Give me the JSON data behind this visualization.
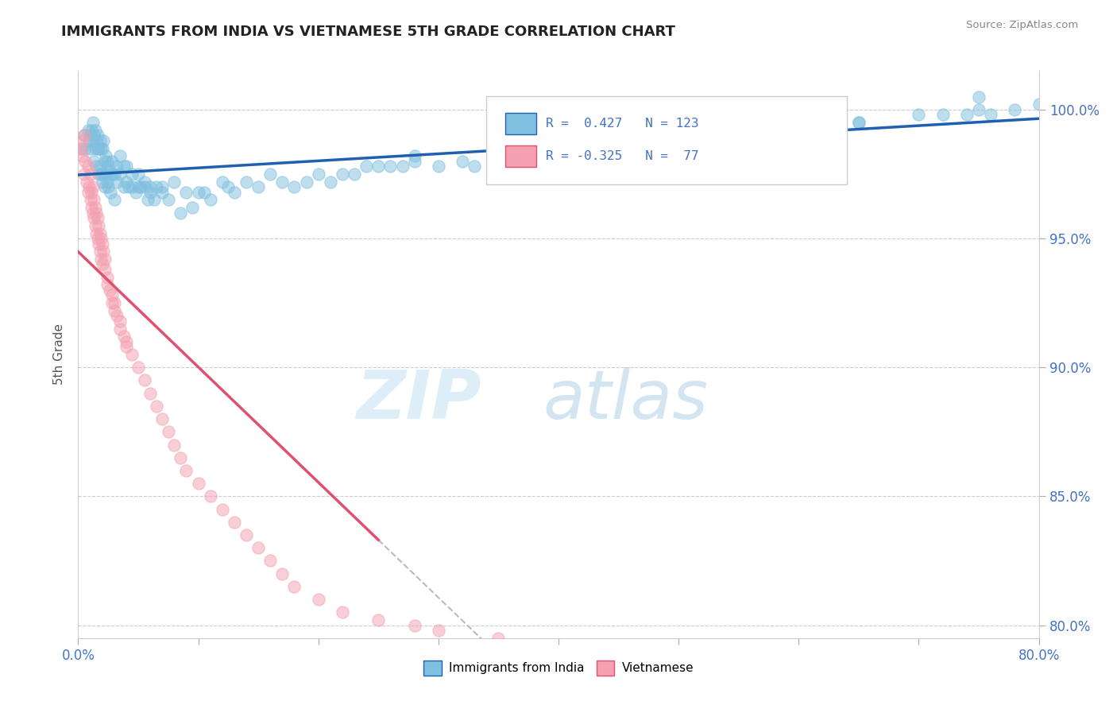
{
  "title": "IMMIGRANTS FROM INDIA VS VIETNAMESE 5TH GRADE CORRELATION CHART",
  "source_text": "Source: ZipAtlas.com",
  "ylabel": "5th Grade",
  "xlim": [
    0.0,
    80.0
  ],
  "ylim": [
    79.5,
    101.5
  ],
  "xticks": [
    0.0,
    10.0,
    20.0,
    30.0,
    40.0,
    50.0,
    60.0,
    70.0,
    80.0
  ],
  "yticks": [
    80.0,
    85.0,
    90.0,
    95.0,
    100.0
  ],
  "xtick_labels": [
    "0.0%",
    "",
    "",
    "",
    "",
    "",
    "",
    "",
    "80.0%"
  ],
  "ytick_labels": [
    "80.0%",
    "85.0%",
    "90.0%",
    "95.0%",
    "100.0%"
  ],
  "india_R": 0.427,
  "india_N": 123,
  "viet_R": -0.325,
  "viet_N": 77,
  "india_color": "#7fbfdf",
  "viet_color": "#f4a0b0",
  "india_line_color": "#2060b0",
  "viet_line_color": "#e05070",
  "legend_india_label": "Immigrants from India",
  "legend_viet_label": "Vietnamese",
  "background_color": "#ffffff",
  "india_scatter_x": [
    0.3,
    0.5,
    0.6,
    0.8,
    0.9,
    1.0,
    1.0,
    1.1,
    1.2,
    1.2,
    1.3,
    1.3,
    1.4,
    1.4,
    1.5,
    1.5,
    1.6,
    1.6,
    1.7,
    1.7,
    1.8,
    1.8,
    1.9,
    1.9,
    2.0,
    2.0,
    2.1,
    2.1,
    2.2,
    2.2,
    2.3,
    2.3,
    2.4,
    2.4,
    2.5,
    2.5,
    2.7,
    2.7,
    2.8,
    2.8,
    3.0,
    3.0,
    3.2,
    3.2,
    3.5,
    3.5,
    3.8,
    3.8,
    4.0,
    4.0,
    4.2,
    4.5,
    4.5,
    4.8,
    5.0,
    5.0,
    5.2,
    5.5,
    5.5,
    5.8,
    6.0,
    6.0,
    6.3,
    6.5,
    7.0,
    7.0,
    7.5,
    8.0,
    8.5,
    9.0,
    9.5,
    10.0,
    10.5,
    11.0,
    12.0,
    12.5,
    13.0,
    14.0,
    15.0,
    16.0,
    17.0,
    18.0,
    19.0,
    20.0,
    21.0,
    22.0,
    23.0,
    24.0,
    25.0,
    26.0,
    27.0,
    28.0,
    30.0,
    32.0,
    33.0,
    35.0,
    37.0,
    38.0,
    40.0,
    42.0,
    45.0,
    48.0,
    50.0,
    52.0,
    55.0,
    58.0,
    60.0,
    62.0,
    65.0,
    70.0,
    72.0,
    74.0,
    75.0,
    76.0,
    78.0,
    80.0,
    55.0,
    58.0,
    60.0,
    62.0,
    65.0,
    75.0,
    28.0
  ],
  "india_scatter_y": [
    98.5,
    99.0,
    98.5,
    99.2,
    98.8,
    99.0,
    98.5,
    99.2,
    98.8,
    99.5,
    98.0,
    99.0,
    98.5,
    99.2,
    97.8,
    98.8,
    98.5,
    99.0,
    97.5,
    98.5,
    97.8,
    98.8,
    97.5,
    98.5,
    97.2,
    98.5,
    97.5,
    98.8,
    97.0,
    98.0,
    97.5,
    98.2,
    97.2,
    98.0,
    97.0,
    97.8,
    96.8,
    97.5,
    97.5,
    98.0,
    96.5,
    97.5,
    97.2,
    97.8,
    97.5,
    98.2,
    97.0,
    97.8,
    97.2,
    97.8,
    97.0,
    97.0,
    97.5,
    96.8,
    97.5,
    97.0,
    97.0,
    97.0,
    97.2,
    96.5,
    97.0,
    96.8,
    96.5,
    97.0,
    97.0,
    96.8,
    96.5,
    97.2,
    96.0,
    96.8,
    96.2,
    96.8,
    96.8,
    96.5,
    97.2,
    97.0,
    96.8,
    97.2,
    97.0,
    97.5,
    97.2,
    97.0,
    97.2,
    97.5,
    97.2,
    97.5,
    97.5,
    97.8,
    97.8,
    97.8,
    97.8,
    98.0,
    97.8,
    98.0,
    97.8,
    98.0,
    98.2,
    98.0,
    98.5,
    98.5,
    98.5,
    98.8,
    99.0,
    99.0,
    99.2,
    99.2,
    99.5,
    99.5,
    99.5,
    99.8,
    99.8,
    99.8,
    100.0,
    99.8,
    100.0,
    100.2,
    98.8,
    99.0,
    99.2,
    99.5,
    99.5,
    100.5,
    98.2
  ],
  "viet_scatter_x": [
    0.2,
    0.3,
    0.4,
    0.5,
    0.5,
    0.6,
    0.7,
    0.8,
    0.8,
    0.9,
    1.0,
    1.0,
    1.1,
    1.1,
    1.2,
    1.2,
    1.3,
    1.3,
    1.4,
    1.4,
    1.5,
    1.5,
    1.6,
    1.6,
    1.7,
    1.7,
    1.8,
    1.8,
    1.9,
    1.9,
    2.0,
    2.0,
    2.1,
    2.2,
    2.2,
    2.4,
    2.4,
    2.6,
    2.8,
    2.8,
    3.0,
    3.0,
    3.2,
    3.5,
    3.5,
    3.8,
    4.0,
    4.0,
    4.5,
    5.0,
    5.5,
    6.0,
    6.5,
    7.0,
    7.5,
    8.0,
    8.5,
    9.0,
    10.0,
    11.0,
    12.0,
    13.0,
    14.0,
    15.0,
    16.0,
    17.0,
    18.0,
    20.0,
    22.0,
    25.0,
    28.0,
    30.0,
    35.0,
    40.0,
    45.0,
    50.0,
    55.0
  ],
  "viet_scatter_y": [
    98.5,
    98.2,
    98.8,
    97.5,
    99.0,
    98.0,
    97.2,
    97.8,
    96.8,
    97.0,
    97.5,
    96.5,
    96.8,
    96.2,
    97.0,
    96.0,
    96.5,
    95.8,
    96.2,
    95.5,
    96.0,
    95.2,
    95.8,
    95.0,
    95.5,
    94.8,
    95.2,
    94.5,
    95.0,
    94.2,
    94.8,
    94.0,
    94.5,
    94.2,
    93.8,
    93.5,
    93.2,
    93.0,
    92.5,
    92.8,
    92.2,
    92.5,
    92.0,
    91.8,
    91.5,
    91.2,
    91.0,
    90.8,
    90.5,
    90.0,
    89.5,
    89.0,
    88.5,
    88.0,
    87.5,
    87.0,
    86.5,
    86.0,
    85.5,
    85.0,
    84.5,
    84.0,
    83.5,
    83.0,
    82.5,
    82.0,
    81.5,
    81.0,
    80.5,
    80.2,
    80.0,
    79.8,
    79.5,
    79.2,
    79.0,
    78.8,
    78.5
  ]
}
